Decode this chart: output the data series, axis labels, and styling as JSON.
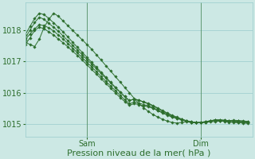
{
  "background_color": "#cce8e4",
  "plot_bg_color": "#cce8e4",
  "grid_color": "#99cccc",
  "line_color": "#2d6e2d",
  "marker_color": "#2d6e2d",
  "xlabel": "Pression niveau de la mer( hPa )",
  "xlabel_fontsize": 8,
  "tick_color": "#2d6e2d",
  "tick_fontsize": 7,
  "ylim": [
    1014.6,
    1018.9
  ],
  "yticks": [
    1015,
    1016,
    1017,
    1018
  ],
  "xlim": [
    0,
    48
  ],
  "sam_x": 13,
  "dim_x": 37,
  "series": [
    {
      "x": [
        0,
        1,
        2,
        3,
        4,
        5,
        6,
        7,
        8,
        9,
        10,
        11,
        12,
        13,
        14,
        15,
        16,
        17,
        18,
        19,
        20,
        21,
        22,
        23,
        24,
        25,
        26,
        27,
        28,
        29,
        30,
        31,
        32,
        33,
        34,
        35,
        36,
        37,
        38,
        39,
        40,
        41,
        42,
        43,
        44,
        45,
        46,
        47
      ],
      "y": [
        1017.55,
        1017.75,
        1018.0,
        1018.1,
        1018.05,
        1017.95,
        1017.85,
        1017.72,
        1017.6,
        1017.47,
        1017.33,
        1017.2,
        1017.05,
        1016.9,
        1016.75,
        1016.6,
        1016.45,
        1016.3,
        1016.15,
        1016.0,
        1015.85,
        1015.72,
        1015.6,
        1015.65,
        1015.62,
        1015.58,
        1015.55,
        1015.5,
        1015.42,
        1015.35,
        1015.28,
        1015.22,
        1015.18,
        1015.14,
        1015.1,
        1015.07,
        1015.05,
        1015.05,
        1015.08,
        1015.1,
        1015.12,
        1015.1,
        1015.08,
        1015.06,
        1015.05,
        1015.04,
        1015.03,
        1015.02
      ]
    },
    {
      "x": [
        0,
        1,
        2,
        3,
        4,
        5,
        6,
        7,
        8,
        9,
        10,
        11,
        12,
        13,
        14,
        15,
        16,
        17,
        18,
        19,
        20,
        21,
        22,
        23,
        24,
        25,
        26,
        27,
        28,
        29,
        30,
        31,
        32,
        33,
        34,
        35,
        36,
        37,
        38,
        39,
        40,
        41,
        42,
        43,
        44,
        45,
        46,
        47
      ],
      "y": [
        1017.7,
        1017.88,
        1018.05,
        1018.18,
        1018.15,
        1018.08,
        1017.98,
        1017.85,
        1017.72,
        1017.58,
        1017.43,
        1017.28,
        1017.13,
        1016.98,
        1016.83,
        1016.68,
        1016.52,
        1016.37,
        1016.22,
        1016.07,
        1015.92,
        1015.78,
        1015.65,
        1015.7,
        1015.67,
        1015.62,
        1015.58,
        1015.52,
        1015.44,
        1015.37,
        1015.3,
        1015.23,
        1015.18,
        1015.13,
        1015.09,
        1015.06,
        1015.04,
        1015.04,
        1015.06,
        1015.09,
        1015.11,
        1015.1,
        1015.09,
        1015.08,
        1015.07,
        1015.06,
        1015.05,
        1015.04
      ]
    },
    {
      "x": [
        0,
        1,
        2,
        3,
        4,
        5,
        6,
        7,
        8,
        9,
        10,
        11,
        12,
        13,
        14,
        15,
        16,
        17,
        18,
        19,
        20,
        21,
        22,
        23,
        24,
        25,
        26,
        27,
        28,
        29,
        30,
        31,
        32,
        33,
        34,
        35,
        36,
        37,
        38,
        39,
        40,
        41,
        42,
        43,
        44,
        45,
        46,
        47
      ],
      "y": [
        1017.75,
        1018.0,
        1018.25,
        1018.42,
        1018.35,
        1018.22,
        1018.1,
        1017.97,
        1017.82,
        1017.67,
        1017.52,
        1017.37,
        1017.22,
        1017.07,
        1016.92,
        1016.77,
        1016.62,
        1016.47,
        1016.32,
        1016.17,
        1016.02,
        1015.88,
        1015.75,
        1015.8,
        1015.76,
        1015.71,
        1015.66,
        1015.59,
        1015.51,
        1015.43,
        1015.35,
        1015.28,
        1015.22,
        1015.16,
        1015.11,
        1015.07,
        1015.05,
        1015.05,
        1015.07,
        1015.1,
        1015.13,
        1015.13,
        1015.12,
        1015.11,
        1015.1,
        1015.09,
        1015.08,
        1015.07
      ]
    },
    {
      "x": [
        0,
        1,
        2,
        3,
        4,
        5,
        6,
        7,
        8,
        9,
        10,
        11,
        12,
        13,
        14,
        15,
        16,
        17,
        18,
        19,
        20,
        21,
        22,
        23,
        24,
        25,
        26,
        27,
        28,
        29,
        30,
        31,
        32,
        33,
        34,
        35,
        36,
        37,
        38,
        39,
        40,
        41,
        42,
        43,
        44,
        45,
        46,
        47
      ],
      "y": [
        1017.85,
        1018.12,
        1018.38,
        1018.55,
        1018.5,
        1018.38,
        1018.24,
        1018.1,
        1017.95,
        1017.79,
        1017.62,
        1017.46,
        1017.3,
        1017.14,
        1016.98,
        1016.82,
        1016.66,
        1016.5,
        1016.34,
        1016.18,
        1016.03,
        1015.88,
        1015.75,
        1015.8,
        1015.76,
        1015.7,
        1015.64,
        1015.57,
        1015.49,
        1015.41,
        1015.33,
        1015.26,
        1015.2,
        1015.14,
        1015.09,
        1015.06,
        1015.04,
        1015.04,
        1015.07,
        1015.1,
        1015.13,
        1015.13,
        1015.12,
        1015.11,
        1015.1,
        1015.09,
        1015.07,
        1015.05
      ]
    },
    {
      "x": [
        0,
        1,
        2,
        3,
        4,
        5,
        6,
        7,
        8,
        9,
        10,
        11,
        12,
        13,
        14,
        15,
        16,
        17,
        18,
        19,
        20,
        21,
        22,
        23,
        24,
        25,
        26,
        27,
        28,
        29,
        30,
        31,
        32,
        33,
        34,
        35,
        36,
        37,
        38,
        39,
        40,
        41,
        42,
        43,
        44,
        45,
        46,
        47
      ],
      "y": [
        1017.62,
        1017.55,
        1017.48,
        1017.72,
        1018.1,
        1018.35,
        1018.55,
        1018.45,
        1018.3,
        1018.15,
        1018.0,
        1017.85,
        1017.7,
        1017.55,
        1017.4,
        1017.22,
        1017.05,
        1016.87,
        1016.7,
        1016.52,
        1016.35,
        1016.17,
        1016.0,
        1015.82,
        1015.65,
        1015.52,
        1015.4,
        1015.3,
        1015.22,
        1015.15,
        1015.09,
        1015.05,
        1015.03,
        1015.05,
        1015.07,
        1015.05,
        1015.04,
        1015.04,
        1015.05,
        1015.07,
        1015.08,
        1015.09,
        1015.1,
        1015.11,
        1015.12,
        1015.11,
        1015.1,
        1015.08
      ]
    }
  ]
}
